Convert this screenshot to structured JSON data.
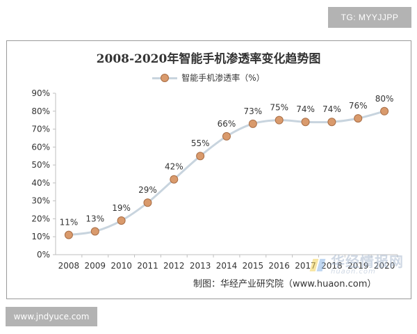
{
  "badge_top": "TG: MYYJJPP",
  "badge_bottom": "www.jndyuce.com",
  "source_note": "制图：华经产业研究院（www.huaon.com）",
  "watermark": {
    "cn": "华经情报网",
    "en": "huaon.com"
  },
  "colors": {
    "line": "#c8d4de",
    "marker_fill": "#d99a6c",
    "marker_stroke": "#a86d45",
    "axis": "#bfbfbf"
  },
  "chart_data": {
    "type": "line",
    "title": "2008-2020年智能手机渗透率变化趋势图",
    "legend": "智能手机渗透率（%）",
    "categories": [
      "2008",
      "2009",
      "2010",
      "2011",
      "2012",
      "2013",
      "2014",
      "2015",
      "2016",
      "2017",
      "2018",
      "2019",
      "2020"
    ],
    "values": [
      11,
      13,
      19,
      29,
      42,
      55,
      66,
      73,
      75,
      74,
      74,
      76,
      80
    ],
    "data_labels": [
      "11%",
      "13%",
      "19%",
      "29%",
      "42%",
      "55%",
      "66%",
      "73%",
      "75%",
      "74%",
      "74%",
      "76%",
      "80%"
    ],
    "y_ticks": [
      "0%",
      "10%",
      "20%",
      "30%",
      "40%",
      "50%",
      "60%",
      "70%",
      "80%",
      "90%"
    ],
    "ylim": [
      0,
      90
    ],
    "xlabel": "",
    "ylabel": ""
  }
}
